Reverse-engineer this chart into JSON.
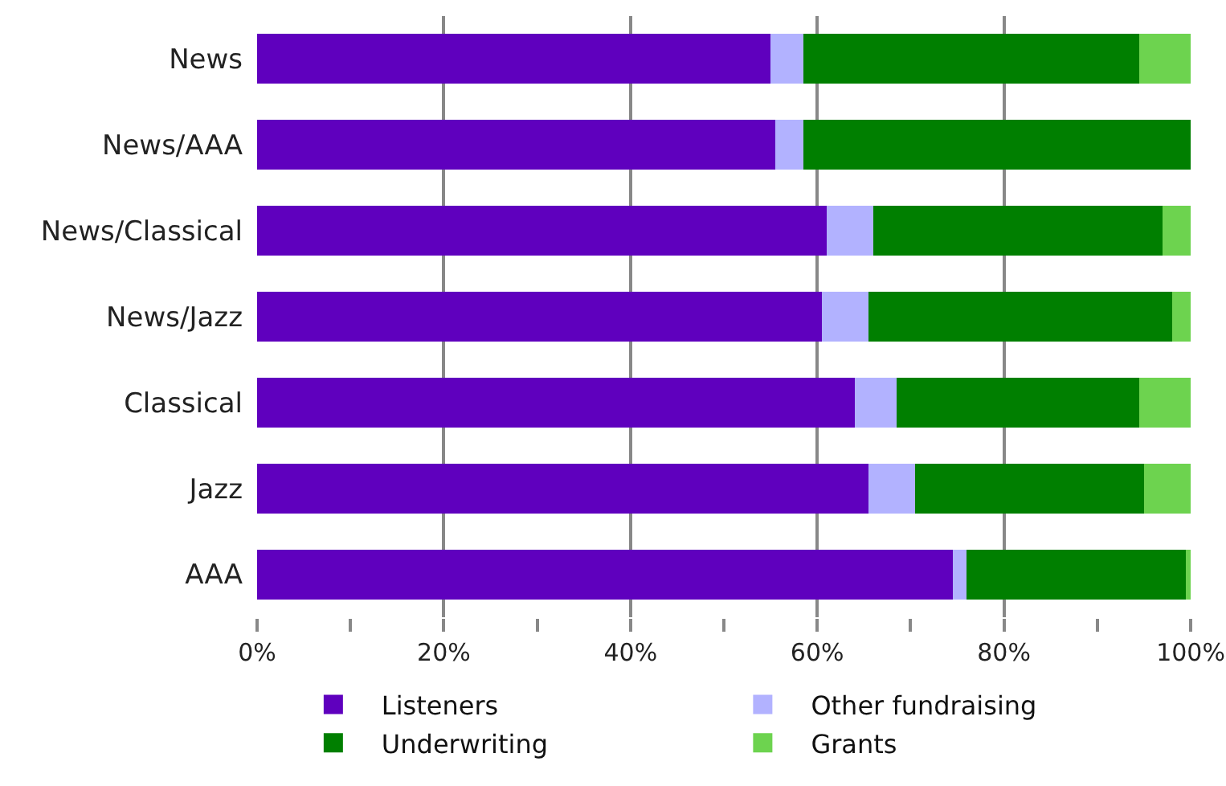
{
  "chart_data": {
    "type": "bar",
    "orientation": "horizontal",
    "stacked": true,
    "categories": [
      "News",
      "News/AAA",
      "News/Classical",
      "News/Jazz",
      "Classical",
      "Jazz",
      "AAA"
    ],
    "series": [
      {
        "name": "Listeners",
        "color": "#5f00be",
        "values": [
          55,
          55.5,
          61,
          60.5,
          64,
          65.5,
          74.5
        ]
      },
      {
        "name": "Other fundraising",
        "color": "#b2b2ff",
        "values": [
          3.5,
          3,
          5,
          5,
          4.5,
          5,
          1.5
        ]
      },
      {
        "name": "Underwriting",
        "color": "#007f00",
        "values": [
          36,
          41.5,
          31,
          32.5,
          26,
          24.5,
          23.5
        ]
      },
      {
        "name": "Grants",
        "color": "#6dd34f",
        "values": [
          5.5,
          0,
          3,
          2,
          5.5,
          5,
          0.5
        ]
      }
    ],
    "xlim": [
      0,
      100
    ],
    "xticks": [
      {
        "value": 0,
        "label": "0%"
      },
      {
        "value": 10,
        "label": null
      },
      {
        "value": 20,
        "label": "20%"
      },
      {
        "value": 30,
        "label": null
      },
      {
        "value": 40,
        "label": "40%"
      },
      {
        "value": 50,
        "label": null
      },
      {
        "value": 60,
        "label": "60%"
      },
      {
        "value": 70,
        "label": null
      },
      {
        "value": 80,
        "label": "80%"
      },
      {
        "value": 90,
        "label": null
      },
      {
        "value": 100,
        "label": "100%"
      }
    ],
    "grid": "x",
    "legend": "bottom"
  }
}
